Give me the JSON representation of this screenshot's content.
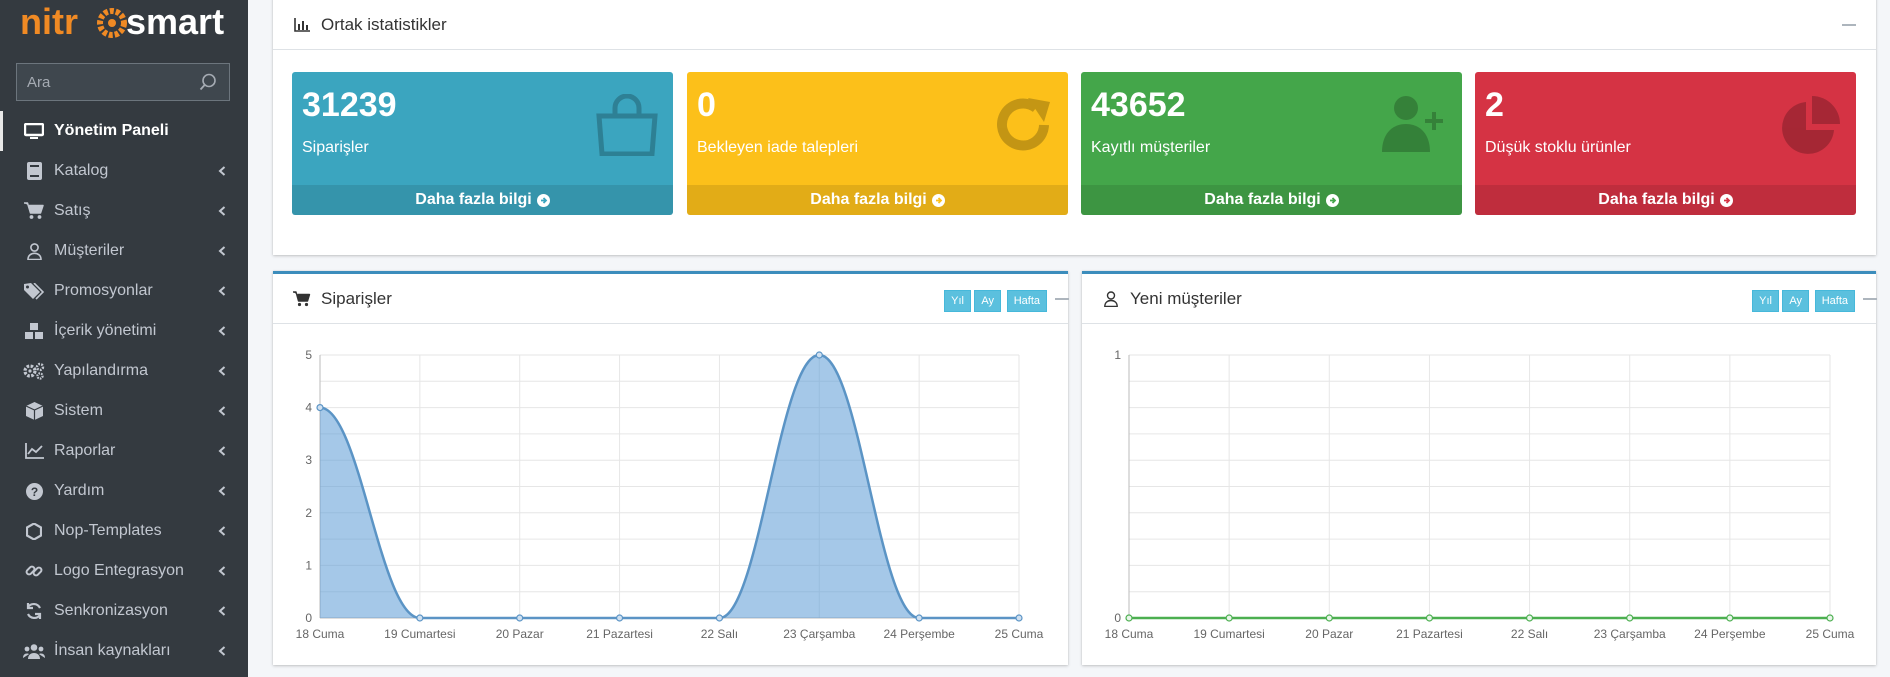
{
  "sidebar": {
    "logo": "nitrosmart",
    "search": {
      "placeholder": "Ara",
      "value": ""
    },
    "items": [
      {
        "label": "Yönetim Paneli",
        "icon": "monitor-icon",
        "active": true
      },
      {
        "label": "Katalog",
        "icon": "book-icon"
      },
      {
        "label": "Satış",
        "icon": "cart-icon"
      },
      {
        "label": "Müşteriler",
        "icon": "user-icon"
      },
      {
        "label": "Promosyonlar",
        "icon": "tags-icon"
      },
      {
        "label": "İçerik yönetimi",
        "icon": "cubes-icon"
      },
      {
        "label": "Yapılandırma",
        "icon": "gears-icon"
      },
      {
        "label": "Sistem",
        "icon": "cube-icon"
      },
      {
        "label": "Raporlar",
        "icon": "line-chart-icon"
      },
      {
        "label": "Yardım",
        "icon": "question-icon"
      },
      {
        "label": "Nop-Templates",
        "icon": "hexagon-icon"
      },
      {
        "label": "Logo Entegrasyon",
        "icon": "link-icon"
      },
      {
        "label": "Senkronizasyon",
        "icon": "sync-icon"
      },
      {
        "label": "İnsan kaynakları",
        "icon": "users-icon"
      }
    ]
  },
  "stats_card": {
    "title": "Ortak istatistikler",
    "boxes": [
      {
        "value": "31239",
        "label": "Siparişler",
        "link": "Daha fazla bilgi",
        "color": "#3ba5bf",
        "icon": "shopping-bag-icon"
      },
      {
        "value": "0",
        "label": "Bekleyen iade talepleri",
        "link": "Daha fazla bilgi",
        "color": "#fcc01a",
        "icon": "refresh-icon"
      },
      {
        "value": "43652",
        "label": "Kayıtlı müşteriler",
        "link": "Daha fazla bilgi",
        "color": "#44a64a",
        "icon": "user-plus-icon"
      },
      {
        "value": "2",
        "label": "Düşük stoklu ürünler",
        "link": "Daha fazla bilgi",
        "color": "#d53344",
        "icon": "pie-chart-icon"
      }
    ]
  },
  "orders_card": {
    "title": "Siparişler",
    "buttons": [
      "Yıl",
      "Ay",
      "Hafta"
    ]
  },
  "customers_card": {
    "title": "Yeni müşteriler",
    "buttons": [
      "Yıl",
      "Ay",
      "Hafta"
    ]
  },
  "chart_data": [
    {
      "type": "area",
      "categories": [
        "18 Cuma",
        "19 Cumartesi",
        "20 Pazar",
        "21 Pazartesi",
        "22 Salı",
        "23 Çarşamba",
        "24 Perşembe",
        "25 Cuma"
      ],
      "series": [
        {
          "values": [
            4,
            0,
            0,
            0,
            0,
            5,
            0,
            0
          ]
        }
      ],
      "ylim": [
        0,
        5
      ],
      "yticks": [
        0,
        1,
        2,
        3,
        4,
        5
      ],
      "grid": true,
      "color": "#5b9bd5"
    },
    {
      "type": "line",
      "categories": [
        "18 Cuma",
        "19 Cumartesi",
        "20 Pazar",
        "21 Pazartesi",
        "22 Salı",
        "23 Çarşamba",
        "24 Perşembe",
        "25 Cuma"
      ],
      "series": [
        {
          "values": [
            0,
            0,
            0,
            0,
            0,
            0,
            0,
            0
          ]
        }
      ],
      "ylim": [
        0,
        1
      ],
      "yticks": [
        0,
        1
      ],
      "grid": true,
      "color": "#4caf50"
    }
  ]
}
